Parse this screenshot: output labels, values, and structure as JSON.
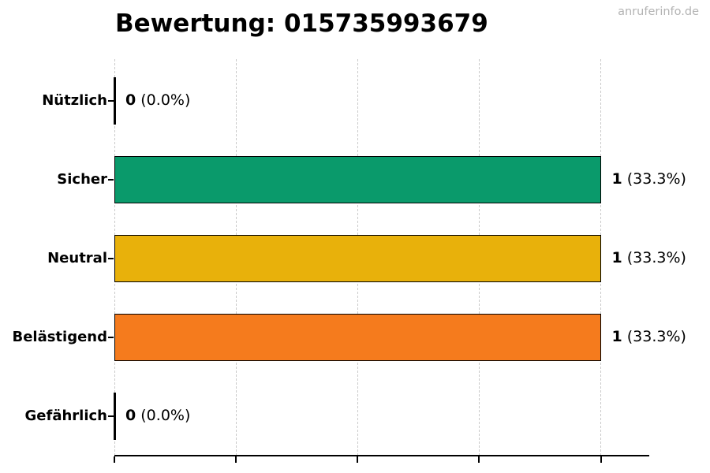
{
  "page": {
    "watermark": "anruferinfo.de"
  },
  "chart_data": {
    "type": "bar",
    "orientation": "horizontal",
    "title": "Bewertung: 015735993679",
    "categories": [
      "Nützlich",
      "Sicher",
      "Neutral",
      "Belästigend",
      "Gefährlich"
    ],
    "values": [
      0,
      1,
      1,
      1,
      0
    ],
    "bar_labels": [
      {
        "count": "0",
        "percent": "(0.0%)"
      },
      {
        "count": "1",
        "percent": "(33.3%)"
      },
      {
        "count": "1",
        "percent": "(33.3%)"
      },
      {
        "count": "1",
        "percent": "(33.3%)"
      },
      {
        "count": "0",
        "percent": "(0.0%)"
      }
    ],
    "colors": [
      null,
      "#0a9a6b",
      "#e8b10b",
      "#f57b1d",
      null
    ],
    "bar_edge_color": "#000000",
    "zero_bar_color": "#000000",
    "background": "#ffffff",
    "grid_color": "#cacaca",
    "grid_style": "dashed-vertical",
    "x_gridlines": [
      0,
      0.25,
      0.5,
      0.75,
      1.0
    ],
    "x_tick_labels_visible": false,
    "xlim": [
      0,
      1.1
    ],
    "legend": null
  }
}
